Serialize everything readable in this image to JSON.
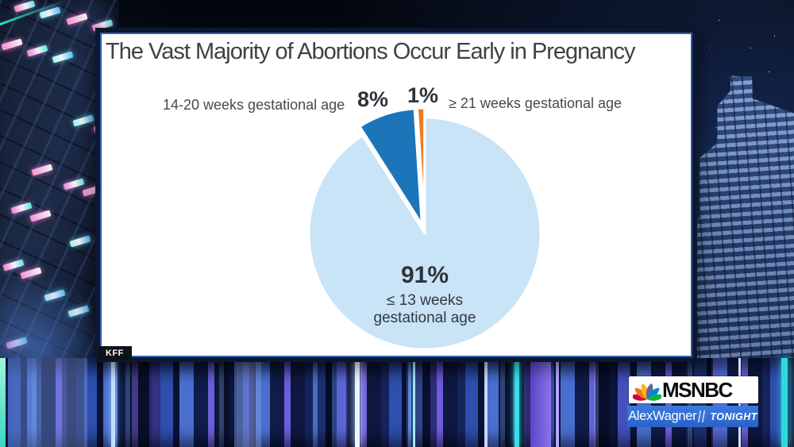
{
  "chart_data": {
    "type": "pie",
    "title": "The Vast Majority of Abortions Occur Early in Pregnancy",
    "source": "KFF",
    "legend_position": "callouts",
    "start_angle": "top",
    "direction": "clockwise",
    "slices": [
      {
        "label": "≤ 13 weeks gestational age",
        "label_line1": "≤ 13 weeks",
        "label_line2": "gestational age",
        "value": 91,
        "pct_label": "91%",
        "color": "#c9e3f7"
      },
      {
        "label": "14-20 weeks gestational age",
        "value": 8,
        "pct_label": "8%",
        "color": "#1c75b9"
      },
      {
        "label": "≥ 21 weeks gestational age",
        "value": 1,
        "pct_label": "1%",
        "color": "#ea7d1f"
      }
    ]
  },
  "branding": {
    "network": "MSNBC",
    "show_name": "AlexWagner",
    "show_suffix": "TONIGHT",
    "bar_color": "#2f6bd0",
    "peacock_colors": [
      "#fdb913",
      "#f37021",
      "#cc004c",
      "#6460aa",
      "#0089d0",
      "#0db14b"
    ]
  }
}
